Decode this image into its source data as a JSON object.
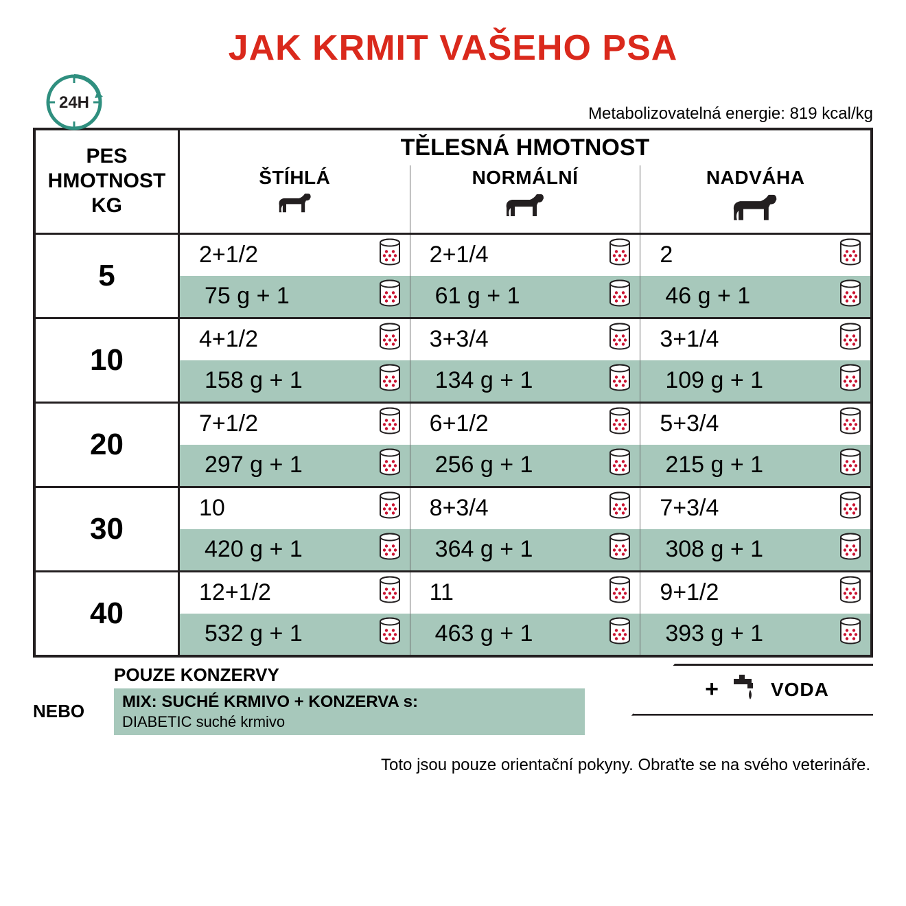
{
  "title": "JAK KRMIT VAŠEHO PSA",
  "title_color": "#da291c",
  "title_fontsize": 52,
  "clock_label": "24H",
  "energy_text": "Metabolizovatelná energie: 819 kcal/kg",
  "header": {
    "weight_col": [
      "PES",
      "HMOTNOST",
      "KG"
    ],
    "body_title": "TĚLESNÁ HMOTNOST",
    "cols": [
      "ŠTÍHLÁ",
      "NORMÁLNÍ",
      "NADVÁHA"
    ]
  },
  "colors": {
    "border": "#231f20",
    "accent_bg": "#a7c8bb",
    "can_red": "#c8102e",
    "clock_teal": "#2f8f7f",
    "text": "#231f20"
  },
  "rows": [
    {
      "weight": "5",
      "cells": [
        {
          "cans": "2+1/2",
          "grams": "75 g + 1"
        },
        {
          "cans": "2+1/4",
          "grams": "61 g + 1"
        },
        {
          "cans": "2",
          "grams": "46 g + 1"
        }
      ]
    },
    {
      "weight": "10",
      "cells": [
        {
          "cans": "4+1/2",
          "grams": "158 g + 1"
        },
        {
          "cans": "3+3/4",
          "grams": "134 g + 1"
        },
        {
          "cans": "3+1/4",
          "grams": "109 g + 1"
        }
      ]
    },
    {
      "weight": "20",
      "cells": [
        {
          "cans": "7+1/2",
          "grams": "297 g + 1"
        },
        {
          "cans": "6+1/2",
          "grams": "256 g + 1"
        },
        {
          "cans": "5+3/4",
          "grams": "215 g + 1"
        }
      ]
    },
    {
      "weight": "30",
      "cells": [
        {
          "cans": "10",
          "grams": "420 g + 1"
        },
        {
          "cans": "8+3/4",
          "grams": "364 g + 1"
        },
        {
          "cans": "7+3/4",
          "grams": "308 g + 1"
        }
      ]
    },
    {
      "weight": "40",
      "cells": [
        {
          "cans": "12+1/2",
          "grams": "532 g + 1"
        },
        {
          "cans": "11",
          "grams": "463 g + 1"
        },
        {
          "cans": "9+1/2",
          "grams": "393 g + 1"
        }
      ]
    }
  ],
  "footer": {
    "line1": "POUZE KONZERVY",
    "nebo": "NEBO",
    "mix_title": "MIX: SUCHÉ KRMIVO + KONZERVA s:",
    "mix_sub": "DIABETIC suché krmivo",
    "water_plus": "+",
    "water_text": "VODA"
  },
  "disclaimer": "Toto jsou pouze orientační pokyny. Obraťte se na svého veterináře.",
  "dog_scales": [
    0.85,
    1.0,
    1.15
  ]
}
